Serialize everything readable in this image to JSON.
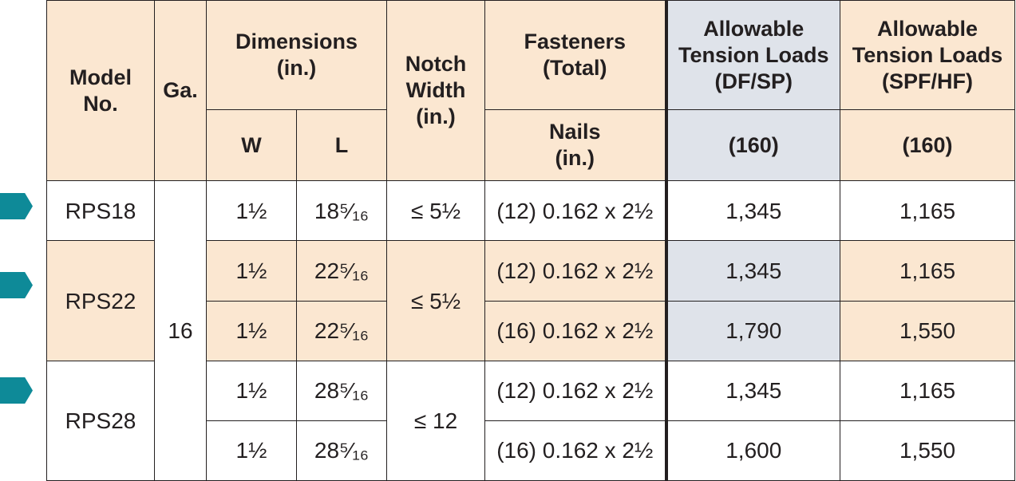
{
  "colors": {
    "marker": "#0e8a98",
    "header_tan": "#fbe7d1",
    "header_blue": "#dfe3ea",
    "row_tan": "#fbe7d1"
  },
  "header": {
    "model_no": [
      "Model",
      "No."
    ],
    "ga": "Ga.",
    "dimensions": [
      "Dimensions",
      "(in.)"
    ],
    "w": "W",
    "l": "L",
    "notch_width": [
      "Notch",
      "Width",
      "(in.)"
    ],
    "fasteners": [
      "Fasteners",
      "(Total)"
    ],
    "nails": [
      "Nails",
      "(in.)"
    ],
    "tension_df": [
      "Allowable",
      "Tension Loads",
      "(DF/SP)"
    ],
    "tension_spf": [
      "Allowable",
      "Tension Loads",
      "(SPF/HF)"
    ],
    "df_160": "(160)",
    "spf_160": "(160)"
  },
  "gauge": "16",
  "rows": [
    {
      "model": "RPS18",
      "w": "1½",
      "l": "18⁵⁄₁₆",
      "notch": "≤ 5½",
      "nails": "(12) 0.162 x 2½",
      "df": "1,345",
      "spf": "1,165"
    },
    {
      "model": "RPS22",
      "w": "1½",
      "l": "22⁵⁄₁₆",
      "notch": "≤ 5½",
      "nails": "(12) 0.162 x 2½",
      "df": "1,345",
      "spf": "1,165"
    },
    {
      "model": "",
      "w": "1½",
      "l": "22⁵⁄₁₆",
      "notch": "",
      "nails": "(16) 0.162 x 2½",
      "df": "1,790",
      "spf": "1,550"
    },
    {
      "model": "RPS28",
      "w": "1½",
      "l": "28⁵⁄₁₆",
      "notch": "≤ 12",
      "nails": "(12) 0.162 x 2½",
      "df": "1,345",
      "spf": "1,165"
    },
    {
      "model": "",
      "w": "1½",
      "l": "28⁵⁄₁₆",
      "notch": "",
      "nails": "(16) 0.162 x 2½",
      "df": "1,600",
      "spf": "1,550"
    }
  ]
}
